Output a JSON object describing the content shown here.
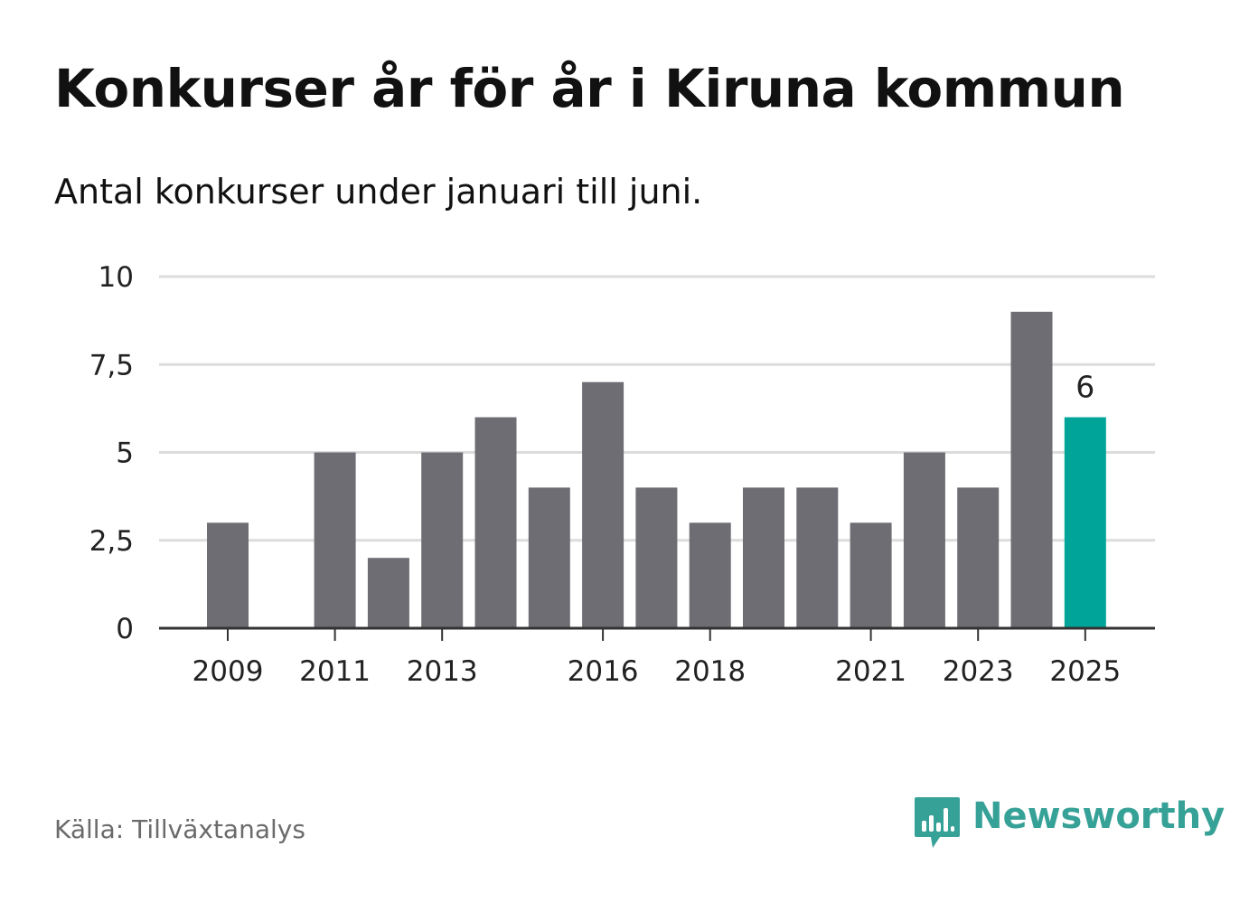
{
  "title": "Konkurser år för år i Kiruna kommun",
  "subtitle": "Antal konkurser under januari till juni.",
  "source": "Källa: Tillväxtanalys",
  "logo": {
    "text": "Newsworthy",
    "icon": "newsworthy-chart-bubble-icon",
    "color": "#36a197"
  },
  "colors": {
    "bar": "#6e6d73",
    "highlight": "#00a499",
    "grid": "#dcdcdc",
    "axis": "#333333"
  },
  "chart_data": {
    "type": "bar",
    "title": "Konkurser år för år i Kiruna kommun",
    "subtitle": "Antal konkurser under januari till juni.",
    "xlabel": "",
    "ylabel": "",
    "categories": [
      "2009",
      "2010",
      "2011",
      "2012",
      "2013",
      "2014",
      "2015",
      "2016",
      "2017",
      "2018",
      "2019",
      "2020",
      "2021",
      "2022",
      "2023",
      "2024",
      "2025"
    ],
    "values": [
      3,
      0,
      5,
      2,
      5,
      6,
      4,
      7,
      4,
      3,
      4,
      4,
      3,
      5,
      4,
      9,
      6
    ],
    "highlight_category": "2025",
    "highlight_label": "6",
    "x_tick_labels": [
      "2009",
      "2011",
      "2013",
      "2016",
      "2018",
      "2021",
      "2023",
      "2025"
    ],
    "y_ticks": [
      0,
      2.5,
      5,
      7.5,
      10
    ],
    "y_tick_labels": [
      "0",
      "2,5",
      "5",
      "7,5",
      "10"
    ],
    "ylim": [
      0,
      10
    ],
    "grid": true,
    "legend": "none"
  }
}
